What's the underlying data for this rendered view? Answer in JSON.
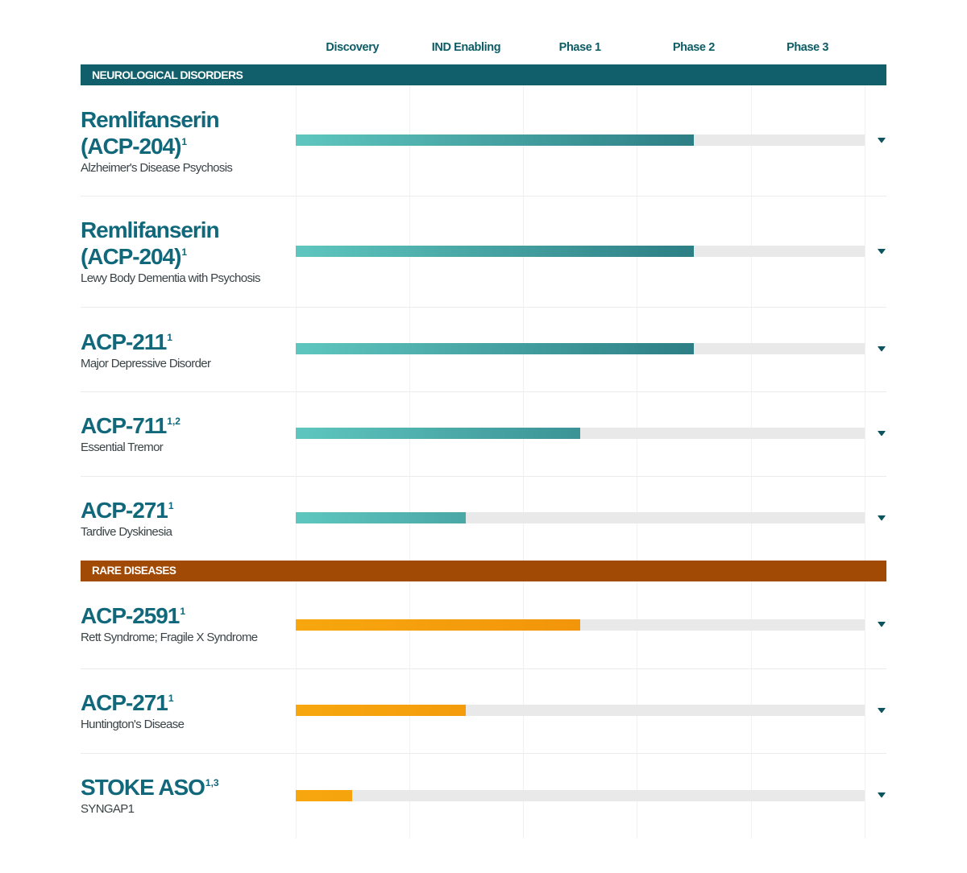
{
  "columns": {
    "labels": [
      "Discovery",
      "IND Enabling",
      "Phase 1",
      "Phase 2",
      "Phase 3"
    ]
  },
  "colors": {
    "neuro_banner": "#115f6a",
    "rare_banner": "#a04a05",
    "title_teal": "#10687a",
    "header_teal": "#0d5c66",
    "chevron_teal": "#0d545e",
    "track_gray": "#e9e9e9",
    "teal_bar_gradient": [
      "#5fc6bf",
      "#17606c"
    ],
    "orange_bar_gradient": [
      "#f7a70f",
      "#ee8303"
    ]
  },
  "sections": [
    {
      "label": "NEUROLOGICAL DISORDERS",
      "rows": [
        {
          "name_lines": [
            "Remlifanserin",
            "(ACP-204)"
          ],
          "sup": "1",
          "indication": "Alzheimer's Disease Psychosis",
          "stage": "Phase 2",
          "progress_pct": 70
        },
        {
          "name_lines": [
            "Remlifanserin",
            "(ACP-204)"
          ],
          "sup": "1",
          "indication": "Lewy Body Dementia with Psychosis",
          "stage": "Phase 2",
          "progress_pct": 70
        },
        {
          "name_lines": [
            "ACP-211"
          ],
          "sup": "1",
          "indication": "Major Depressive Disorder",
          "stage": "Phase 2",
          "progress_pct": 70
        },
        {
          "name_lines": [
            "ACP-711"
          ],
          "sup": "1,2",
          "indication": "Essential Tremor",
          "stage": "Phase 1",
          "progress_pct": 50
        },
        {
          "name_lines": [
            "ACP-271"
          ],
          "sup": "1",
          "indication": "Tardive Dyskinesia",
          "stage": "IND Enabling",
          "progress_pct": 30
        }
      ]
    },
    {
      "label": "RARE DISEASES",
      "rows": [
        {
          "name_lines": [
            "ACP-2591"
          ],
          "sup": "1",
          "indication": "Rett Syndrome; Fragile X Syndrome",
          "stage": "Phase 1",
          "progress_pct": 50
        },
        {
          "name_lines": [
            "ACP-271"
          ],
          "sup": "1",
          "indication": "Huntington's Disease",
          "stage": "IND Enabling",
          "progress_pct": 30
        },
        {
          "name_lines": [
            "STOKE ASO"
          ],
          "sup": "1,3",
          "indication": "SYNGAP1",
          "stage": "Discovery",
          "progress_pct": 10
        }
      ]
    }
  ],
  "chart_data": {
    "type": "bar",
    "title": "",
    "stages": [
      "Discovery",
      "IND Enabling",
      "Phase 1",
      "Phase 2",
      "Phase 3"
    ],
    "grid": "light vertical column lines, horizontal row separators",
    "legend_position": "none",
    "series": [
      {
        "program": "Remlifanserin (ACP-204)",
        "footnote": "1",
        "indication": "Alzheimer's Disease Psychosis",
        "category": "Neurological Disorders",
        "stage_reached": "Phase 2",
        "fraction_of_scale": 0.7
      },
      {
        "program": "Remlifanserin (ACP-204)",
        "footnote": "1",
        "indication": "Lewy Body Dementia with Psychosis",
        "category": "Neurological Disorders",
        "stage_reached": "Phase 2",
        "fraction_of_scale": 0.7
      },
      {
        "program": "ACP-211",
        "footnote": "1",
        "indication": "Major Depressive Disorder",
        "category": "Neurological Disorders",
        "stage_reached": "Phase 2",
        "fraction_of_scale": 0.7
      },
      {
        "program": "ACP-711",
        "footnote": "1,2",
        "indication": "Essential Tremor",
        "category": "Neurological Disorders",
        "stage_reached": "Phase 1",
        "fraction_of_scale": 0.5
      },
      {
        "program": "ACP-271",
        "footnote": "1",
        "indication": "Tardive Dyskinesia",
        "category": "Neurological Disorders",
        "stage_reached": "IND Enabling",
        "fraction_of_scale": 0.3
      },
      {
        "program": "ACP-2591",
        "footnote": "1",
        "indication": "Rett Syndrome; Fragile X Syndrome",
        "category": "Rare Diseases",
        "stage_reached": "Phase 1",
        "fraction_of_scale": 0.5
      },
      {
        "program": "ACP-271",
        "footnote": "1",
        "indication": "Huntington's Disease",
        "category": "Rare Diseases",
        "stage_reached": "IND Enabling",
        "fraction_of_scale": 0.3
      },
      {
        "program": "STOKE ASO",
        "footnote": "1,3",
        "indication": "SYNGAP1",
        "category": "Rare Diseases",
        "stage_reached": "Discovery",
        "fraction_of_scale": 0.1
      }
    ]
  }
}
